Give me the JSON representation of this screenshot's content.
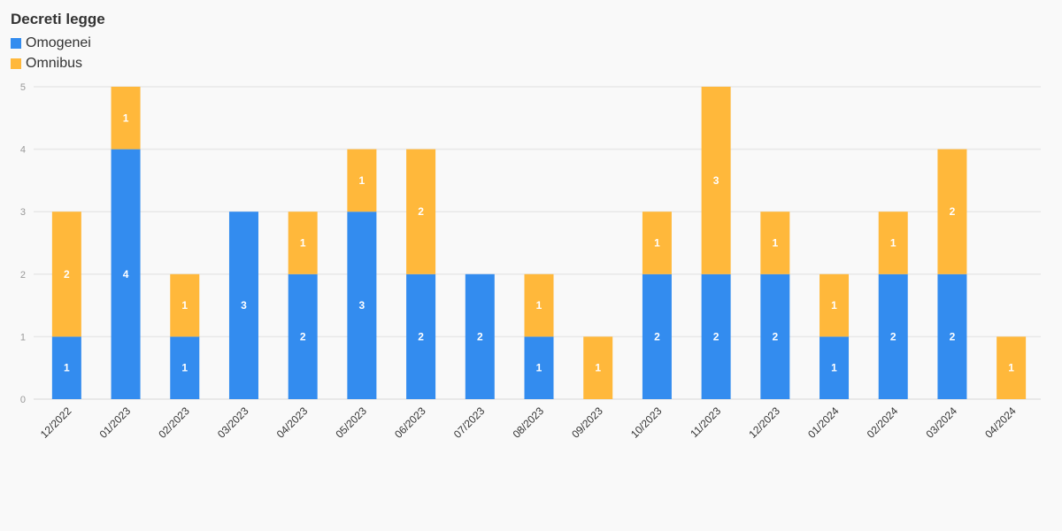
{
  "chart_data": {
    "type": "bar",
    "stacked": true,
    "title": "Decreti legge",
    "categories": [
      "12/2022",
      "01/2023",
      "02/2023",
      "03/2023",
      "04/2023",
      "05/2023",
      "06/2023",
      "07/2023",
      "08/2023",
      "09/2023",
      "10/2023",
      "11/2023",
      "12/2023",
      "01/2024",
      "02/2024",
      "03/2024",
      "04/2024"
    ],
    "series": [
      {
        "name": "Omogenei",
        "color": "#338cef",
        "values": [
          1,
          4,
          1,
          3,
          2,
          3,
          2,
          2,
          1,
          0,
          2,
          2,
          2,
          1,
          2,
          2,
          0
        ]
      },
      {
        "name": "Omnibus",
        "color": "#ffb83b",
        "values": [
          2,
          1,
          1,
          0,
          1,
          1,
          2,
          0,
          1,
          1,
          1,
          3,
          1,
          1,
          1,
          2,
          1
        ]
      }
    ],
    "ylim": [
      0,
      5
    ],
    "yticks": [
      0,
      1,
      2,
      3,
      4,
      5
    ],
    "grid": true,
    "legend_position": "top-left",
    "data_labels": true
  }
}
